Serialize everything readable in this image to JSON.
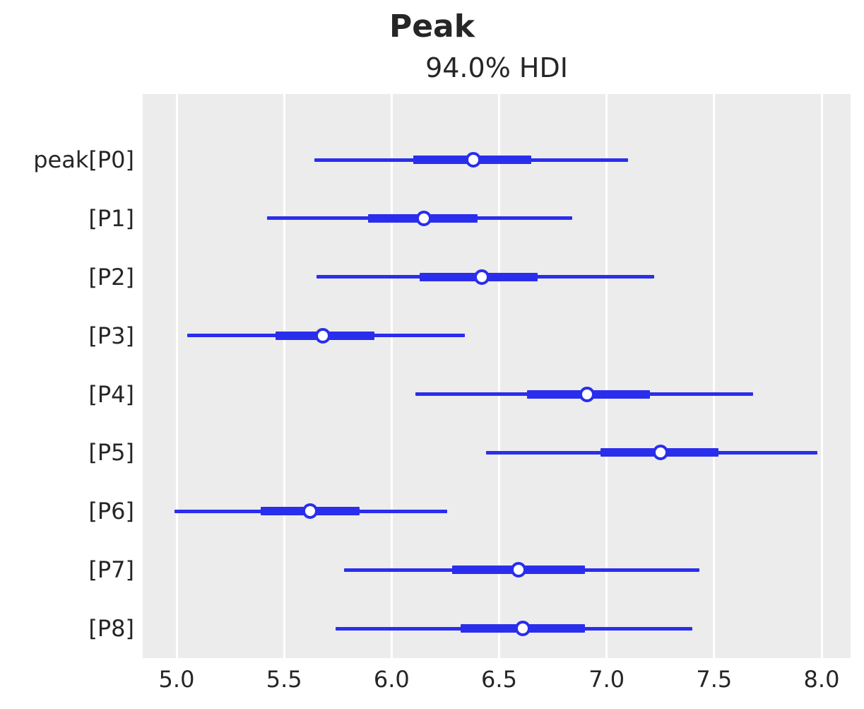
{
  "title": "Peak",
  "subtitle": "94.0% HDI",
  "colors": {
    "interval": "#2a2eec",
    "plot_background": "#ececec",
    "gridline": "#ffffff",
    "text": "#262626"
  },
  "chart_data": {
    "type": "forest",
    "title": "Peak",
    "subtitle": "94.0% HDI",
    "hdi_probability": "94.0%",
    "xlabel": "",
    "xlim": [
      4.84,
      8.14
    ],
    "xticks": [
      5.0,
      5.5,
      6.0,
      6.5,
      7.0,
      7.5,
      8.0
    ],
    "xtick_labels": [
      "5.0",
      "5.5",
      "6.0",
      "6.5",
      "7.0",
      "7.5",
      "8.0"
    ],
    "grid": "vertical-white-on-gray",
    "legend": "none",
    "rows": [
      {
        "label": "peak[P0]",
        "hdi_lower": 5.64,
        "quartile_lower": 6.1,
        "median": 6.38,
        "quartile_upper": 6.65,
        "hdi_upper": 7.1
      },
      {
        "label": "[P1]",
        "hdi_lower": 5.42,
        "quartile_lower": 5.89,
        "median": 6.15,
        "quartile_upper": 6.4,
        "hdi_upper": 6.84
      },
      {
        "label": "[P2]",
        "hdi_lower": 5.65,
        "quartile_lower": 6.13,
        "median": 6.42,
        "quartile_upper": 6.68,
        "hdi_upper": 7.22
      },
      {
        "label": "[P3]",
        "hdi_lower": 5.05,
        "quartile_lower": 5.46,
        "median": 5.68,
        "quartile_upper": 5.92,
        "hdi_upper": 6.34
      },
      {
        "label": "[P4]",
        "hdi_lower": 6.11,
        "quartile_lower": 6.63,
        "median": 6.91,
        "quartile_upper": 7.2,
        "hdi_upper": 7.68
      },
      {
        "label": "[P5]",
        "hdi_lower": 6.44,
        "quartile_lower": 6.97,
        "median": 7.25,
        "quartile_upper": 7.52,
        "hdi_upper": 7.98
      },
      {
        "label": "[P6]",
        "hdi_lower": 4.99,
        "quartile_lower": 5.39,
        "median": 5.62,
        "quartile_upper": 5.85,
        "hdi_upper": 6.26
      },
      {
        "label": "[P7]",
        "hdi_lower": 5.78,
        "quartile_lower": 6.28,
        "median": 6.59,
        "quartile_upper": 6.9,
        "hdi_upper": 7.43
      },
      {
        "label": "[P8]",
        "hdi_lower": 5.74,
        "quartile_lower": 6.32,
        "median": 6.61,
        "quartile_upper": 6.9,
        "hdi_upper": 7.4
      }
    ]
  }
}
